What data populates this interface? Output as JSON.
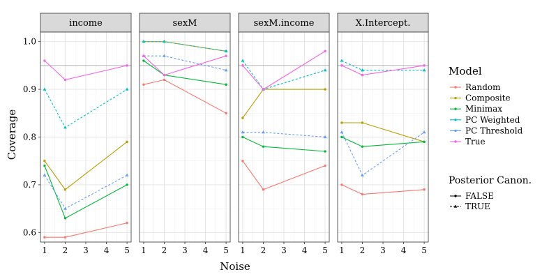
{
  "chart_data": {
    "type": "line",
    "facets": [
      "income",
      "sexM",
      "sexM.income",
      "X.Intercept."
    ],
    "x": [
      1,
      2,
      5
    ],
    "x_ticks": [
      "1",
      "2",
      "3",
      "4",
      "5"
    ],
    "xlabel": "Noise",
    "ylabel": "Coverage",
    "ylim": [
      0.58,
      1.02
    ],
    "y_ticks": [
      "0.6",
      "0.7",
      "0.8",
      "0.9",
      "1.0"
    ],
    "reference_line": 0.95,
    "grid": true,
    "legend_position": "right",
    "legend": {
      "color_title": "Model",
      "color_labels": [
        "Random",
        "Composite",
        "Minimax",
        "PC Weighted",
        "PC Threshold",
        "True"
      ],
      "linetype_title": "Posterior Canon.",
      "linetype_labels": [
        "FALSE",
        "TRUE"
      ]
    },
    "colors": {
      "Random": "#f8766d",
      "Composite": "#b79f00",
      "Minimax": "#00ba38",
      "PC Weighted": "#00bfc4",
      "PC Threshold": "#619cff",
      "True": "#f564e3"
    },
    "series": [
      {
        "model": "Random",
        "posterior_canon": "FALSE",
        "values": {
          "income": [
            0.59,
            0.59,
            0.62
          ],
          "sexM": [
            0.91,
            0.92,
            0.85
          ],
          "sexM.income": [
            0.75,
            0.69,
            0.74
          ],
          "X.Intercept.": [
            0.7,
            0.68,
            0.69
          ]
        }
      },
      {
        "model": "Composite",
        "posterior_canon": "FALSE",
        "values": {
          "income": [
            0.75,
            0.69,
            0.79
          ],
          "sexM": [
            1.0,
            1.0,
            0.98
          ],
          "sexM.income": [
            0.84,
            0.9,
            0.9
          ],
          "X.Intercept.": [
            0.83,
            0.83,
            0.79
          ]
        }
      },
      {
        "model": "Minimax",
        "posterior_canon": "FALSE",
        "values": {
          "income": [
            0.74,
            0.63,
            0.7
          ],
          "sexM": [
            0.96,
            0.93,
            0.91
          ],
          "sexM.income": [
            0.8,
            0.78,
            0.77
          ],
          "X.Intercept.": [
            0.8,
            0.78,
            0.79
          ]
        }
      },
      {
        "model": "PC Weighted",
        "posterior_canon": "TRUE",
        "values": {
          "income": [
            0.9,
            0.82,
            0.9
          ],
          "sexM": [
            1.0,
            1.0,
            0.98
          ],
          "sexM.income": [
            0.96,
            0.9,
            0.94
          ],
          "X.Intercept.": [
            0.96,
            0.94,
            0.94
          ]
        }
      },
      {
        "model": "PC Threshold",
        "posterior_canon": "TRUE",
        "values": {
          "income": [
            0.72,
            0.65,
            0.72
          ],
          "sexM": [
            0.97,
            0.97,
            0.94
          ],
          "sexM.income": [
            0.81,
            0.81,
            0.8
          ],
          "X.Intercept.": [
            0.81,
            0.72,
            0.81
          ]
        }
      },
      {
        "model": "True",
        "posterior_canon": "FALSE",
        "values": {
          "income": [
            0.96,
            0.92,
            0.95
          ],
          "sexM": [
            0.97,
            0.93,
            0.97
          ],
          "sexM.income": [
            0.95,
            0.9,
            0.98
          ],
          "X.Intercept.": [
            0.95,
            0.93,
            0.95
          ]
        }
      }
    ]
  }
}
